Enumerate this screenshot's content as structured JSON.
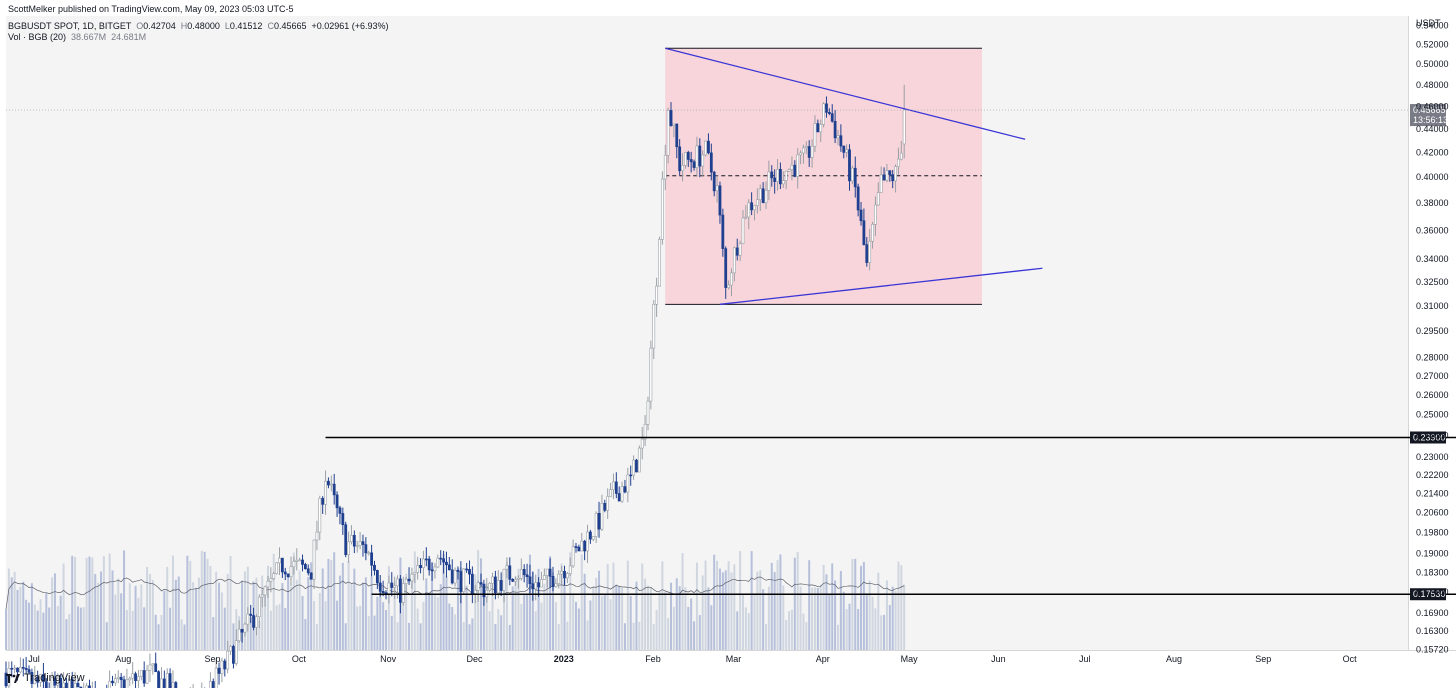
{
  "header": {
    "published": "ScottMelker published on TradingView.com, May 09, 2023 05:03 UTC-5",
    "symbol": "BGBUSDT SPOT, 1D, BITGET",
    "ohlc": {
      "o_label": "O",
      "o": "0.42704",
      "h_label": "H",
      "h": "0.48000",
      "l_label": "L",
      "l": "0.41512",
      "c_label": "C",
      "c": "0.45665",
      "change": "+0.02961 (+6.93%)"
    },
    "volume": {
      "label": "Vol · BGB (20)",
      "v1": "38.667M",
      "v2": "24.681M"
    }
  },
  "footer": {
    "brand": "TradingView"
  },
  "chart_data": {
    "type": "candlestick",
    "price_axis": {
      "unit": "USDT",
      "ticks": [
        "0.54000",
        "0.52000",
        "0.50000",
        "0.48000",
        "0.46000",
        "0.44000",
        "0.42000",
        "0.40000",
        "0.38000",
        "0.36000",
        "0.34000",
        "0.32500",
        "0.31000",
        "0.29500",
        "0.28000",
        "0.27000",
        "0.26000",
        "0.25000",
        "0.24000",
        "0.23000",
        "0.22200",
        "0.21400",
        "0.20600",
        "0.19800",
        "0.19000",
        "0.18300",
        "0.17600",
        "0.16900",
        "0.16300",
        "0.15720"
      ],
      "range": [
        0.157,
        0.55
      ],
      "scale": "log"
    },
    "time_axis": {
      "ticks": [
        "Jul",
        "Aug",
        "Sep",
        "Oct",
        "Nov",
        "Dec",
        "2023",
        "Feb",
        "Mar",
        "Apr",
        "May",
        "Jun",
        "Jul",
        "Aug",
        "Sep",
        "Oct"
      ],
      "range": [
        "2022-07-01",
        "2023-10-31"
      ]
    },
    "last_price": {
      "value": "0.45665",
      "countdown": "13:56:13"
    },
    "horizontal_lines": [
      {
        "value": 0.239,
        "label": "0.23900",
        "from": "2022-10-20"
      },
      {
        "value": 0.1753,
        "label": "0.17530",
        "from": "2022-11-05"
      }
    ],
    "range_box": {
      "from": "2023-02-15",
      "to": "2023-06-05",
      "top": 0.516,
      "bottom": 0.311,
      "mid": 0.401,
      "color": "#f8cdd3"
    },
    "trendlines": [
      {
        "x1": "2023-02-15",
        "y1": 0.516,
        "x2": "2023-06-20",
        "y2": 0.431,
        "color": "#3a35d6"
      },
      {
        "x1": "2023-03-06",
        "y1": 0.311,
        "x2": "2023-06-26",
        "y2": 0.334,
        "color": "#3a35d6"
      }
    ],
    "price_keypoints": [
      [
        "2022-07-01",
        0.15
      ],
      [
        "2022-07-15",
        0.146
      ],
      [
        "2022-08-01",
        0.143
      ],
      [
        "2022-08-20",
        0.15
      ],
      [
        "2022-09-05",
        0.14
      ],
      [
        "2022-09-15",
        0.152
      ],
      [
        "2022-09-25",
        0.168
      ],
      [
        "2022-10-05",
        0.186
      ],
      [
        "2022-10-15",
        0.184
      ],
      [
        "2022-10-20",
        0.222
      ],
      [
        "2022-10-27",
        0.194
      ],
      [
        "2022-11-03",
        0.192
      ],
      [
        "2022-11-08",
        0.18
      ],
      [
        "2022-11-15",
        0.176
      ],
      [
        "2022-11-28",
        0.19
      ],
      [
        "2022-12-05",
        0.181
      ],
      [
        "2022-12-15",
        0.177
      ],
      [
        "2022-12-25",
        0.184
      ],
      [
        "2023-01-02",
        0.178
      ],
      [
        "2023-01-12",
        0.186
      ],
      [
        "2023-01-22",
        0.201
      ],
      [
        "2023-01-28",
        0.214
      ],
      [
        "2023-02-03",
        0.22
      ],
      [
        "2023-02-08",
        0.24
      ],
      [
        "2023-02-12",
        0.33
      ],
      [
        "2023-02-16",
        0.46
      ],
      [
        "2023-02-20",
        0.41
      ],
      [
        "2023-03-01",
        0.42
      ],
      [
        "2023-03-05",
        0.39
      ],
      [
        "2023-03-08",
        0.32
      ],
      [
        "2023-03-15",
        0.375
      ],
      [
        "2023-03-25",
        0.4
      ],
      [
        "2023-04-05",
        0.415
      ],
      [
        "2023-04-12",
        0.46
      ],
      [
        "2023-04-18",
        0.42
      ],
      [
        "2023-04-22",
        0.39
      ],
      [
        "2023-04-26",
        0.335
      ],
      [
        "2023-05-01",
        0.395
      ],
      [
        "2023-05-06",
        0.402
      ],
      [
        "2023-05-08",
        0.427
      ],
      [
        "2023-05-09",
        0.45665
      ]
    ],
    "volume_series": {
      "ma_length": 20,
      "up_color": "#c9d0dc",
      "down_color": "#aab6d6"
    }
  }
}
